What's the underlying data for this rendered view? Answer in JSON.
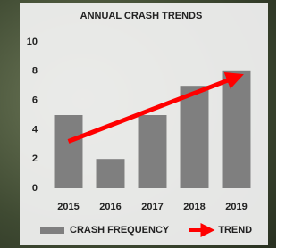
{
  "chart_data": {
    "type": "bar",
    "title": "ANNUAL CRASH TRENDS",
    "categories": [
      "2015",
      "2016",
      "2017",
      "2018",
      "2019"
    ],
    "series": [
      {
        "name": "CRASH FREQUENCY",
        "color": "#7f7f7f",
        "values": [
          5,
          2,
          5,
          7,
          8
        ]
      },
      {
        "name": "TREND",
        "color": "#ff0000",
        "type": "arrow",
        "values": [
          3.2,
          4.3,
          5.4,
          6.5,
          7.6
        ]
      }
    ],
    "ylim": [
      0,
      10
    ],
    "yticks": [
      0,
      2,
      4,
      6,
      8,
      10
    ],
    "grid": false,
    "legend": "bottom"
  }
}
